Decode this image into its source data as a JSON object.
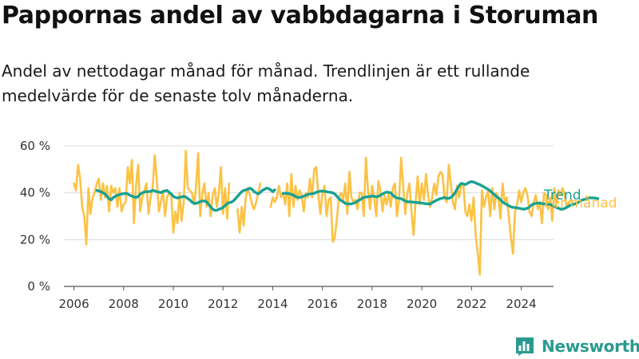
{
  "chart_data": {
    "type": "line",
    "title": "Pappornas andel av vabbdagarna i Storuman",
    "subtitle": "Andel av nettodagar månad för månad. Trendlinjen är ett rullande medelvärde för de senaste tolv månaderna.",
    "xlabel": "",
    "ylabel": "",
    "xlim": [
      2005.5,
      2025.3
    ],
    "ylim": [
      0,
      60
    ],
    "x_ticks": [
      "2006",
      "2008",
      "2010",
      "2012",
      "2014",
      "2016",
      "2018",
      "2020",
      "2022",
      "2024"
    ],
    "y_ticks": [
      "0 %",
      "20 %",
      "40 %",
      "60 %"
    ],
    "grid": true,
    "series": [
      {
        "name": "Per månad",
        "color": "#fcc245",
        "segments": [
          {
            "start": "2006-01",
            "values": [
              44,
              41,
              52,
              46,
              34,
              30,
              18,
              42,
              31,
              38,
              40,
              44,
              46,
              37,
              44,
              38,
              43,
              32,
              43,
              40,
              42,
              34,
              42,
              32,
              35,
              36,
              51,
              44,
              54,
              27,
              43,
              52,
              32,
              38,
              41,
              44,
              31,
              38,
              42,
              56,
              46,
              32,
              36,
              41,
              30,
              38,
              40,
              39,
              23,
              32,
              27,
              40,
              28,
              36,
              58,
              42,
              41,
              40,
              35,
              43,
              57,
              30,
              40,
              44,
              34,
              40,
              30,
              39,
              42,
              34,
              40,
              51,
              31,
              42,
              29,
              44
            ]
          },
          {
            "start": "2012-08",
            "values": [
              33,
              23,
              34,
              26,
              38,
              42,
              39,
              35,
              33,
              36,
              40,
              44
            ]
          },
          {
            "start": "2013-12",
            "values": [
              34,
              38,
              36,
              38,
              43,
              38,
              40,
              35,
              44,
              30,
              48,
              34,
              43,
              37,
              41,
              39,
              32,
              40,
              38,
              46,
              38,
              50,
              51,
              39,
              31,
              40,
              43,
              30,
              37,
              38,
              19,
              21,
              29,
              38,
              40,
              37,
              44,
              31,
              49,
              38,
              36,
              37,
              33,
              40,
              40,
              30,
              55,
              41,
              33,
              43,
              38,
              30,
              45,
              41,
              32,
              39,
              35,
              40,
              34,
              42,
              44,
              30,
              37,
              55,
              43,
              31,
              40,
              44,
              32,
              22,
              36,
              47,
              35,
              44,
              37,
              48,
              39,
              34,
              38,
              44,
              39,
              47,
              49,
              48,
              38,
              36,
              52,
              44,
              36,
              33,
              43,
              38,
              43,
              44,
              32,
              30,
              35,
              28,
              38,
              22,
              14,
              5,
              41,
              34,
              38,
              41,
              30,
              42,
              33,
              40,
              38,
              29,
              44,
              36,
              38,
              30,
              21,
              14,
              32,
              35,
              41,
              36,
              40,
              42,
              39,
              32,
              30,
              36,
              39,
              33,
              36,
              27,
              40,
              39,
              33,
              38,
              28,
              42,
              35,
              41,
              39,
              42,
              39,
              34,
              36,
              37,
              35
            ]
          }
        ]
      },
      {
        "name": "Trend",
        "color": "#19a192",
        "segments": [
          {
            "start": "2006-12",
            "values": [
              41,
              40.8,
              40.5,
              40,
              39.5,
              38.5,
              37.5,
              37,
              38,
              38.5,
              39,
              39.2,
              39.5,
              39.6,
              39.8,
              39.5,
              39,
              38.6,
              38.3,
              38,
              38.4,
              39.5,
              40,
              40.3,
              40.5,
              40.5,
              40.6,
              41,
              40.8,
              40.5,
              40.3,
              40.1,
              40.5,
              40.8,
              41,
              40.2,
              39.5,
              38.5,
              38,
              37.8,
              38,
              38.2,
              38.5,
              38.2,
              37.5,
              37,
              36,
              35.5,
              35.5,
              35.8,
              36.2,
              36.5,
              36.5,
              36.2,
              35,
              34,
              33,
              32.5,
              32.5,
              33,
              33.2,
              33.8,
              34.5,
              35.4,
              35.8,
              36,
              36.5,
              37.5,
              38.5,
              39.5,
              40.5,
              41,
              41.2,
              41.6,
              42,
              41.5,
              40.5,
              40,
              39.5,
              40.2,
              41,
              41.5,
              42,
              41.8,
              41.2,
              40.5,
              41.2
            ]
          },
          {
            "start": "2014-06",
            "values": [
              39.8,
              39.8,
              39.7,
              39.6,
              39.3,
              39,
              38.4,
              38,
              38,
              38.2,
              38.6,
              39,
              39.3,
              39.5,
              39.6,
              39.8,
              40.2,
              40.5,
              40.7,
              40.7,
              40.6,
              40.5,
              40.3,
              40.2,
              40,
              39.5,
              38.5,
              37.5,
              36.7,
              36.2,
              35.5,
              35.3,
              35.2,
              35.3,
              35.6,
              35.8,
              36.5,
              37,
              37.5,
              38,
              38.2,
              38.3,
              38.5,
              38.6,
              38.5,
              38.3,
              38.5,
              39,
              39.5,
              40,
              40.3,
              40.2,
              40,
              39,
              38.2,
              37.8,
              37.6,
              37.5,
              37,
              36.5,
              36.2,
              36.1,
              36.1,
              36,
              35.9,
              35.8,
              35.8,
              35.6,
              35.5,
              35.3,
              35.3,
              35.2,
              35.8,
              36.3,
              36.8,
              37.2,
              37.5,
              37.7,
              38,
              37.6,
              37.6,
              38,
              38.8,
              40,
              41.5,
              43,
              44,
              43.8,
              43.5,
              44,
              44.5,
              44.8,
              44.6,
              44.2,
              43.8,
              43.5,
              43,
              42.5,
              42,
              41.5,
              40.8,
              40,
              39.2,
              38.4,
              37.8,
              37,
              36,
              35.5,
              35,
              34.5,
              34,
              33.8,
              33.7,
              33.5,
              33.4,
              33.2,
              33,
              33.1,
              33.4,
              34,
              34.8,
              35.2,
              35.5,
              35.6,
              35.6,
              35.4,
              35.2,
              35.2,
              35.2,
              35,
              34.6,
              34.2,
              33.8,
              33.4,
              33,
              33,
              33.3,
              33.8,
              34.3,
              34.8,
              35,
              35.3,
              35.7,
              36.3,
              36.7,
              37.1,
              37.3,
              37.6,
              37.9,
              37.8,
              37.8,
              37.7,
              37.5
            ]
          }
        ]
      }
    ]
  },
  "brand": {
    "name": "Newsworthy",
    "color": "#2a9a8e",
    "icon": "bar-chart-logo-icon"
  }
}
